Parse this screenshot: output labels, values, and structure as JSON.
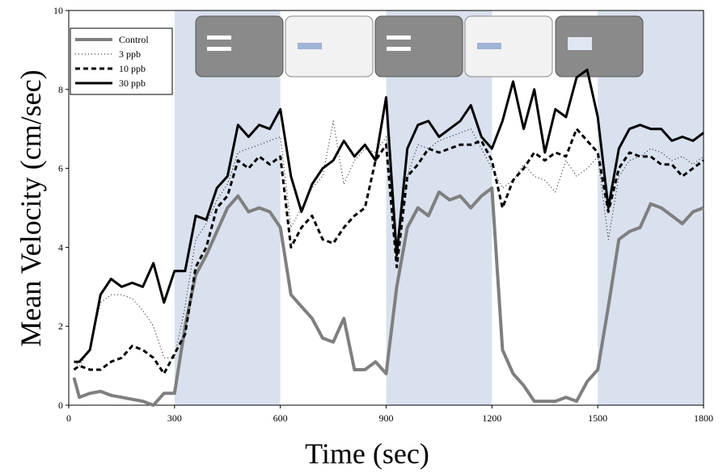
{
  "chart_data": {
    "type": "line",
    "xlabel": "Time (sec)",
    "ylabel": "Mean Velocity (cm/sec)",
    "xlim": [
      0,
      1800
    ],
    "xticks": [
      0,
      300,
      600,
      900,
      1200,
      1500,
      1800
    ],
    "ylim": [
      0,
      10
    ],
    "yticks": [
      0,
      2,
      4,
      6,
      8,
      10
    ],
    "shaded_regions": [
      [
        300,
        600
      ],
      [
        900,
        1200
      ],
      [
        1500,
        1800
      ]
    ],
    "shade_color": "#d9e1ee",
    "legend": "upper left",
    "x": [
      15,
      30,
      60,
      90,
      120,
      150,
      180,
      210,
      240,
      270,
      300,
      330,
      360,
      390,
      420,
      450,
      480,
      510,
      540,
      570,
      600,
      630,
      660,
      690,
      720,
      750,
      780,
      810,
      840,
      870,
      900,
      930,
      960,
      990,
      1020,
      1050,
      1080,
      1110,
      1140,
      1170,
      1200,
      1230,
      1260,
      1290,
      1320,
      1350,
      1380,
      1410,
      1440,
      1470,
      1500,
      1530,
      1560,
      1590,
      1620,
      1650,
      1680,
      1710,
      1740,
      1770,
      1800
    ],
    "series": [
      {
        "name": "Control",
        "color": "#7f7f7f",
        "style": "solid",
        "width": 4,
        "values": [
          0.7,
          0.2,
          0.3,
          0.35,
          0.25,
          0.2,
          0.15,
          0.1,
          0,
          0.3,
          0.3,
          2.0,
          3.3,
          3.8,
          4.4,
          5.0,
          5.3,
          4.9,
          5.0,
          4.9,
          4.5,
          2.8,
          2.5,
          2.2,
          1.7,
          1.6,
          2.2,
          0.9,
          0.9,
          1.1,
          0.8,
          3.0,
          4.5,
          5.0,
          4.8,
          5.4,
          5.2,
          5.3,
          5.0,
          5.3,
          5.5,
          1.4,
          0.8,
          0.5,
          0.1,
          0.1,
          0.1,
          0.2,
          0.1,
          0.6,
          0.9,
          2.5,
          4.2,
          4.4,
          4.5,
          5.1,
          5.0,
          4.8,
          4.6,
          4.9,
          5.0
        ]
      },
      {
        "name": "3 ppb",
        "color": "#000000",
        "style": "dotted",
        "width": 1,
        "values": [
          1.1,
          1.0,
          1.4,
          2.6,
          2.8,
          2.8,
          2.7,
          2.4,
          2.0,
          1.2,
          1.2,
          2.5,
          4.2,
          4.6,
          5.2,
          5.6,
          6.4,
          6.5,
          6.6,
          6.7,
          6.8,
          4.5,
          5.0,
          5.5,
          5.8,
          7.2,
          5.6,
          6.2,
          6.5,
          6.4,
          6.8,
          3.8,
          5.8,
          6.6,
          6.5,
          6.7,
          6.8,
          6.9,
          7.0,
          6.5,
          6.0,
          5.5,
          5.7,
          6.1,
          5.8,
          5.7,
          5.4,
          6.2,
          5.8,
          6.0,
          6.3,
          4.2,
          5.8,
          6.2,
          6.3,
          6.5,
          6.4,
          6.2,
          6.3,
          6.1,
          6.3
        ]
      },
      {
        "name": "10 ppb",
        "color": "#000000",
        "style": "dashed",
        "width": 3,
        "values": [
          0.9,
          1.0,
          0.9,
          0.9,
          1.1,
          1.2,
          1.5,
          1.4,
          1.2,
          0.8,
          1.3,
          1.8,
          3.5,
          4.0,
          5.0,
          5.3,
          6.2,
          6.0,
          6.3,
          6.1,
          6.3,
          4.0,
          4.5,
          4.8,
          4.2,
          4.1,
          4.5,
          4.8,
          5.0,
          6.2,
          6.6,
          3.5,
          5.8,
          6.1,
          6.5,
          6.4,
          6.5,
          6.6,
          6.6,
          6.7,
          6.2,
          5.0,
          5.7,
          6.0,
          6.4,
          6.2,
          6.4,
          6.3,
          7.0,
          6.7,
          6.4,
          4.9,
          6.0,
          6.4,
          6.3,
          6.3,
          6.1,
          6.1,
          5.8,
          6.0,
          6.2
        ]
      },
      {
        "name": "30 ppb",
        "color": "#000000",
        "style": "solid",
        "width": 3,
        "values": [
          1.1,
          1.1,
          1.4,
          2.8,
          3.2,
          3.0,
          3.1,
          3.0,
          3.6,
          2.6,
          3.4,
          3.4,
          4.8,
          4.7,
          5.5,
          5.8,
          7.1,
          6.8,
          7.1,
          7.0,
          7.5,
          5.8,
          4.9,
          5.6,
          6.0,
          6.2,
          6.7,
          6.3,
          6.6,
          6.2,
          7.8,
          3.8,
          6.5,
          7.1,
          7.2,
          6.8,
          7.0,
          7.2,
          7.6,
          6.8,
          6.5,
          7.2,
          8.2,
          7.0,
          8.0,
          6.4,
          7.5,
          7.3,
          8.3,
          8.5,
          7.3,
          5.0,
          6.5,
          7.0,
          7.1,
          7.0,
          7.0,
          6.7,
          6.8,
          6.7,
          6.9
        ]
      }
    ]
  }
}
